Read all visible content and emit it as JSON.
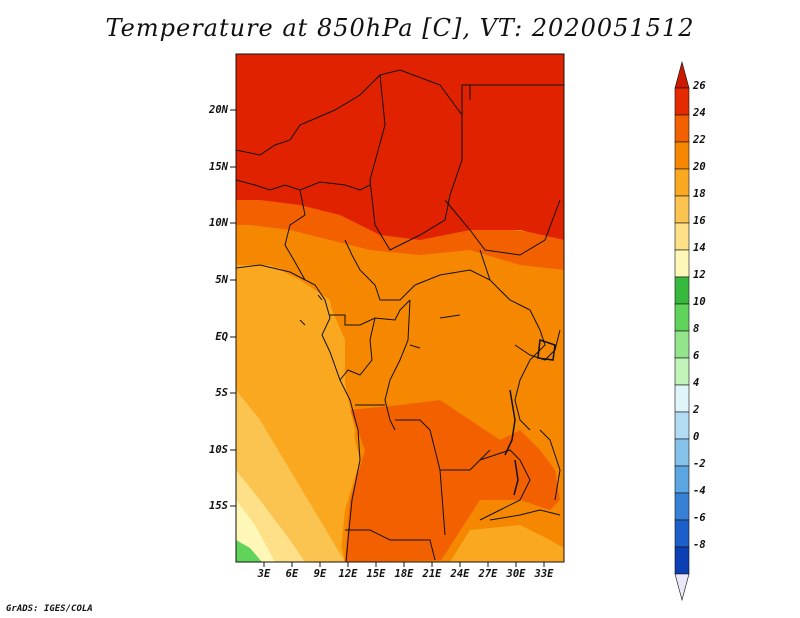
{
  "title": "Temperature at 850hPa [C], VT: 2020051512",
  "footer": "GrADS: IGES/COLA",
  "map": {
    "lat_ticks": [
      "20N",
      "15N",
      "10N",
      "5N",
      "EQ",
      "5S",
      "10S",
      "15S"
    ],
    "lon_ticks": [
      "3E",
      "6E",
      "9E",
      "12E",
      "15E",
      "18E",
      "21E",
      "24E",
      "27E",
      "30E",
      "33E"
    ]
  },
  "colorbar": {
    "labels": [
      "26",
      "24",
      "22",
      "20",
      "18",
      "16",
      "14",
      "12",
      "10",
      "8",
      "6",
      "4",
      "2",
      "0",
      "-2",
      "-4",
      "-6",
      "-8"
    ],
    "colors": [
      "#cc1a00",
      "#e52a00",
      "#f26000",
      "#f58800",
      "#f9a820",
      "#fbc450",
      "#fde088",
      "#fef7b8",
      "#37b93e",
      "#5fd35a",
      "#92e58a",
      "#c2f3b8",
      "#dff5f9",
      "#b2dcf3",
      "#84c2ec",
      "#5aa5e2",
      "#3681d6",
      "#1a5fca",
      "#0c3fb3",
      "#071d87"
    ]
  }
}
